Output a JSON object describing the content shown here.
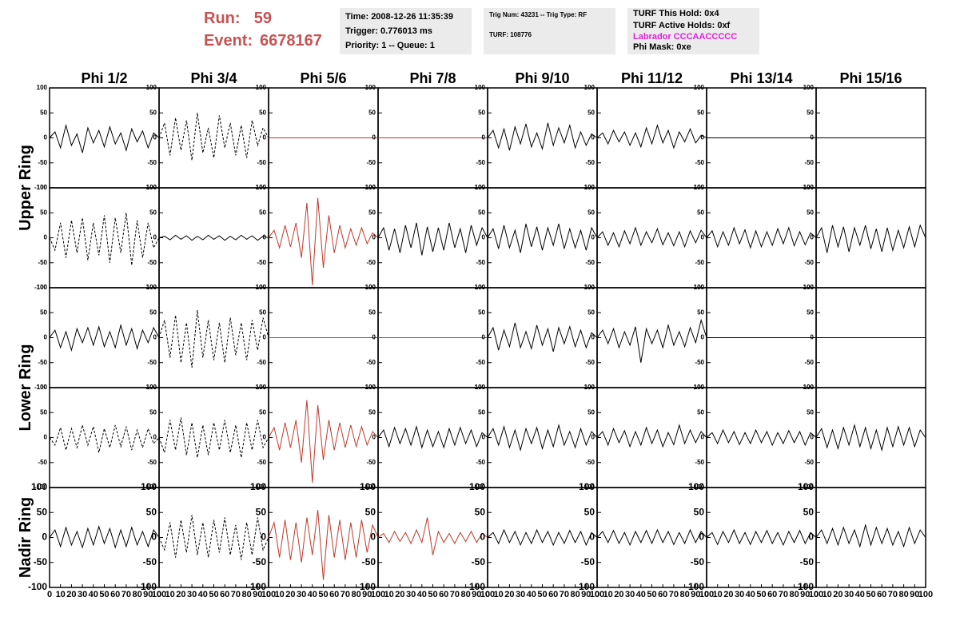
{
  "header": {
    "run_label": "Run:",
    "run": 59,
    "event_label": "Event:",
    "event": 6678167
  },
  "info": {
    "time": "Time: 2008-12-26 11:35:39",
    "trigger": "Trigger: 0.776013 ms",
    "priority": "Priority: 1 -- Queue: 1",
    "trig_num": "Trig Num: 43231 -- Trig Type: RF",
    "turf": "TURF: 108776",
    "this_hold": "TURF This Hold: 0x4",
    "active_holds": "TURF Active Holds: 0xf",
    "labrador": "Labrador CCCAACCCCC",
    "phi_mask": "Phi Mask: 0xe"
  },
  "chart_data": {
    "type": "line",
    "columns": [
      "Phi 1/2",
      "Phi 3/4",
      "Phi 5/6",
      "Phi 7/8",
      "Phi 9/10",
      "Phi 11/12",
      "Phi 13/14",
      "Phi 15/16"
    ],
    "rings": [
      "Upper Ring",
      "Lower Ring",
      "Nadir Ring"
    ],
    "x": [
      0,
      5,
      10,
      15,
      20,
      25,
      30,
      35,
      40,
      45,
      50,
      55,
      60,
      65,
      70,
      75,
      80,
      85,
      90,
      95,
      100
    ],
    "xlim": [
      0,
      100
    ],
    "ylim": [
      -100,
      100
    ],
    "xticks": [
      0,
      10,
      20,
      30,
      40,
      50,
      60,
      70,
      80,
      90,
      100
    ],
    "yticks": [
      -100,
      -50,
      0,
      50,
      100
    ],
    "panels": [
      [
        {
          "color": "#000000",
          "dash": false,
          "values": [
            0,
            12,
            -20,
            25,
            -15,
            8,
            -30,
            20,
            -10,
            15,
            -18,
            22,
            -12,
            10,
            -25,
            18,
            -8,
            14,
            -20,
            10,
            0
          ]
        },
        {
          "color": "#000000",
          "dash": true,
          "values": [
            0,
            30,
            -35,
            40,
            -25,
            35,
            -45,
            50,
            -30,
            20,
            -40,
            45,
            -20,
            30,
            -35,
            25,
            -40,
            35,
            -15,
            20,
            0
          ]
        },
        {
          "color": "#c0392b",
          "dash": false,
          "values": [
            0,
            0,
            0,
            0,
            0,
            0,
            0,
            0,
            0,
            0,
            0,
            0,
            0,
            0,
            0,
            0,
            0,
            0,
            0,
            0,
            0
          ]
        },
        {
          "color": "#c0392b",
          "dash": false,
          "values": [
            0,
            0,
            0,
            0,
            0,
            0,
            0,
            0,
            0,
            0,
            0,
            0,
            0,
            0,
            0,
            0,
            0,
            0,
            0,
            0,
            0
          ]
        },
        {
          "color": "#000000",
          "dash": false,
          "values": [
            0,
            15,
            -20,
            18,
            -25,
            22,
            -12,
            28,
            -18,
            10,
            -22,
            30,
            -15,
            20,
            -10,
            25,
            -20,
            12,
            -15,
            8,
            0
          ]
        },
        {
          "color": "#000000",
          "dash": false,
          "values": [
            0,
            10,
            -12,
            15,
            -8,
            12,
            -15,
            10,
            -18,
            20,
            -12,
            25,
            -10,
            15,
            -20,
            12,
            -8,
            18,
            -10,
            5,
            0
          ]
        },
        {
          "color": "#000000",
          "dash": false,
          "values": [
            0,
            0,
            0,
            0,
            0,
            0,
            0,
            0,
            0,
            0,
            0,
            0,
            0,
            0,
            0,
            0,
            0,
            0,
            0,
            0,
            0
          ]
        },
        {
          "color": "#000000",
          "dash": false,
          "values": [
            0,
            0,
            0,
            0,
            0,
            0,
            0,
            0,
            0,
            0,
            0,
            0,
            0,
            0,
            0,
            0,
            0,
            0,
            0,
            0,
            0
          ]
        }
      ],
      [
        {
          "color": "#000000",
          "dash": true,
          "values": [
            0,
            -25,
            30,
            -40,
            35,
            -30,
            40,
            -45,
            30,
            -35,
            45,
            -50,
            40,
            -30,
            50,
            -55,
            35,
            -40,
            30,
            -20,
            0
          ]
        },
        {
          "color": "#000000",
          "dash": false,
          "values": [
            0,
            3,
            -4,
            5,
            -3,
            4,
            -5,
            3,
            -4,
            5,
            -3,
            4,
            -5,
            3,
            -4,
            5,
            -3,
            4,
            -5,
            3,
            0
          ]
        },
        {
          "color": "#c0392b",
          "dash": false,
          "values": [
            0,
            15,
            -20,
            25,
            -18,
            30,
            -40,
            70,
            -95,
            80,
            -60,
            45,
            -30,
            25,
            -20,
            18,
            -15,
            20,
            -12,
            10,
            0
          ]
        },
        {
          "color": "#000000",
          "dash": false,
          "values": [
            0,
            20,
            -25,
            18,
            -30,
            25,
            -20,
            30,
            -35,
            22,
            -28,
            20,
            -25,
            30,
            -20,
            18,
            -30,
            25,
            -15,
            20,
            0
          ]
        },
        {
          "color": "#000000",
          "dash": false,
          "values": [
            0,
            18,
            -22,
            25,
            -20,
            15,
            -30,
            28,
            -18,
            22,
            -25,
            20,
            -15,
            28,
            -22,
            18,
            -20,
            15,
            -25,
            20,
            0
          ]
        },
        {
          "color": "#000000",
          "dash": false,
          "values": [
            0,
            12,
            -15,
            10,
            -18,
            14,
            -12,
            20,
            -15,
            12,
            -10,
            18,
            -14,
            10,
            -16,
            12,
            -18,
            14,
            -10,
            15,
            0
          ]
        },
        {
          "color": "#000000",
          "dash": false,
          "values": [
            0,
            14,
            -18,
            12,
            -15,
            20,
            -12,
            16,
            -20,
            14,
            -18,
            12,
            -15,
            18,
            -12,
            20,
            -16,
            12,
            -14,
            10,
            0
          ]
        },
        {
          "color": "#000000",
          "dash": false,
          "values": [
            0,
            20,
            -30,
            25,
            -18,
            22,
            -28,
            20,
            -15,
            25,
            -22,
            18,
            -28,
            20,
            -25,
            15,
            -20,
            22,
            -18,
            25,
            0
          ]
        }
      ],
      [
        {
          "color": "#000000",
          "dash": false,
          "values": [
            0,
            15,
            -20,
            12,
            -25,
            18,
            -10,
            20,
            -15,
            22,
            -18,
            12,
            -20,
            25,
            -15,
            18,
            -22,
            15,
            -10,
            20,
            0
          ]
        },
        {
          "color": "#000000",
          "dash": true,
          "values": [
            0,
            35,
            -40,
            45,
            -50,
            30,
            -60,
            55,
            -40,
            35,
            -45,
            30,
            -50,
            40,
            -35,
            30,
            -45,
            35,
            -25,
            40,
            0
          ]
        },
        {
          "color": "#c0392b",
          "dash": false,
          "values": [
            0,
            0,
            0,
            0,
            0,
            0,
            0,
            0,
            0,
            0,
            0,
            0,
            0,
            0,
            0,
            0,
            0,
            0,
            0,
            0,
            0
          ]
        },
        {
          "color": "#c0392b",
          "dash": false,
          "values": [
            0,
            0,
            0,
            0,
            0,
            0,
            0,
            0,
            0,
            0,
            0,
            0,
            0,
            0,
            0,
            0,
            0,
            0,
            0,
            0,
            0
          ]
        },
        {
          "color": "#000000",
          "dash": false,
          "values": [
            0,
            20,
            -25,
            15,
            -18,
            30,
            -20,
            12,
            -22,
            25,
            -15,
            18,
            -28,
            20,
            -12,
            22,
            -18,
            15,
            -20,
            10,
            0
          ]
        },
        {
          "color": "#000000",
          "dash": false,
          "values": [
            0,
            15,
            -12,
            18,
            -20,
            12,
            -15,
            22,
            -50,
            18,
            -12,
            15,
            -20,
            25,
            -15,
            12,
            -18,
            20,
            -10,
            35,
            0
          ]
        },
        {
          "color": "#000000",
          "dash": false,
          "values": [
            0,
            0,
            0,
            0,
            0,
            0,
            0,
            0,
            0,
            0,
            0,
            0,
            0,
            0,
            0,
            0,
            0,
            0,
            0,
            0,
            0
          ]
        },
        {
          "color": "#000000",
          "dash": false,
          "values": [
            0,
            0,
            0,
            0,
            0,
            0,
            0,
            0,
            0,
            0,
            0,
            0,
            0,
            0,
            0,
            0,
            0,
            0,
            0,
            0,
            0
          ]
        }
      ],
      [
        {
          "color": "#000000",
          "dash": true,
          "values": [
            0,
            -15,
            20,
            -25,
            18,
            -20,
            25,
            -15,
            22,
            -30,
            18,
            -20,
            25,
            -18,
            22,
            -25,
            15,
            -20,
            18,
            -12,
            0
          ]
        },
        {
          "color": "#000000",
          "dash": true,
          "values": [
            0,
            -30,
            35,
            -25,
            40,
            -35,
            30,
            -40,
            25,
            -35,
            30,
            -25,
            35,
            -30,
            25,
            -40,
            30,
            -25,
            35,
            -20,
            0
          ]
        },
        {
          "color": "#c0392b",
          "dash": false,
          "values": [
            0,
            20,
            -25,
            30,
            -20,
            35,
            -50,
            75,
            -90,
            65,
            -45,
            35,
            -25,
            30,
            -20,
            25,
            -18,
            22,
            -15,
            12,
            0
          ]
        },
        {
          "color": "#000000",
          "dash": false,
          "values": [
            0,
            15,
            -18,
            20,
            -12,
            18,
            -15,
            22,
            -20,
            15,
            -18,
            12,
            -20,
            18,
            -15,
            20,
            -12,
            15,
            -18,
            10,
            0
          ]
        },
        {
          "color": "#000000",
          "dash": false,
          "values": [
            0,
            18,
            -15,
            22,
            -20,
            15,
            -25,
            18,
            -12,
            20,
            -22,
            15,
            -18,
            25,
            -15,
            12,
            -20,
            18,
            -15,
            12,
            0
          ]
        },
        {
          "color": "#000000",
          "dash": false,
          "values": [
            0,
            12,
            -15,
            18,
            -10,
            14,
            -18,
            12,
            -15,
            20,
            -12,
            15,
            -18,
            10,
            -14,
            25,
            -12,
            15,
            -10,
            12,
            0
          ]
        },
        {
          "color": "#000000",
          "dash": false,
          "values": [
            0,
            10,
            -12,
            15,
            -10,
            12,
            -14,
            10,
            -12,
            15,
            -10,
            12,
            -15,
            10,
            -12,
            14,
            -10,
            12,
            -15,
            10,
            0
          ]
        },
        {
          "color": "#000000",
          "dash": false,
          "values": [
            0,
            18,
            -20,
            15,
            -22,
            20,
            -15,
            25,
            -18,
            20,
            -22,
            15,
            -25,
            20,
            -18,
            22,
            -15,
            20,
            -18,
            15,
            0
          ]
        }
      ],
      [
        {
          "color": "#000000",
          "dash": false,
          "values": [
            0,
            15,
            -18,
            20,
            -15,
            12,
            -20,
            18,
            -15,
            22,
            -12,
            18,
            -20,
            15,
            -18,
            20,
            -15,
            12,
            -18,
            15,
            0
          ]
        },
        {
          "color": "#000000",
          "dash": true,
          "values": [
            0,
            -25,
            30,
            -40,
            35,
            -30,
            45,
            -35,
            30,
            -40,
            35,
            -30,
            40,
            -35,
            25,
            -45,
            30,
            -35,
            40,
            -25,
            0
          ]
        },
        {
          "color": "#c0392b",
          "dash": false,
          "values": [
            0,
            30,
            -40,
            35,
            -45,
            30,
            -50,
            40,
            -35,
            55,
            -85,
            45,
            -40,
            35,
            -45,
            30,
            -40,
            35,
            -30,
            25,
            0
          ]
        },
        {
          "color": "#c0392b",
          "dash": false,
          "values": [
            0,
            8,
            -10,
            12,
            -8,
            10,
            -12,
            15,
            -10,
            40,
            -35,
            12,
            -10,
            8,
            -12,
            10,
            -8,
            12,
            -10,
            8,
            0
          ]
        },
        {
          "color": "#000000",
          "dash": false,
          "values": [
            0,
            10,
            -12,
            15,
            -10,
            12,
            -15,
            10,
            -12,
            15,
            -10,
            12,
            -15,
            10,
            -12,
            14,
            -10,
            12,
            -15,
            10,
            0
          ]
        },
        {
          "color": "#000000",
          "dash": false,
          "values": [
            0,
            12,
            -10,
            14,
            -12,
            10,
            -15,
            12,
            -10,
            14,
            -12,
            15,
            -10,
            12,
            -14,
            10,
            -12,
            15,
            -10,
            12,
            0
          ]
        },
        {
          "color": "#000000",
          "dash": false,
          "values": [
            0,
            10,
            -14,
            12,
            -10,
            15,
            -12,
            10,
            -14,
            12,
            -10,
            14,
            -12,
            10,
            -15,
            12,
            -10,
            14,
            -12,
            10,
            0
          ]
        },
        {
          "color": "#000000",
          "dash": false,
          "values": [
            0,
            15,
            -12,
            18,
            -15,
            20,
            -12,
            15,
            -18,
            25,
            -15,
            20,
            -12,
            18,
            -15,
            12,
            -18,
            20,
            -12,
            15,
            0
          ]
        }
      ]
    ]
  }
}
